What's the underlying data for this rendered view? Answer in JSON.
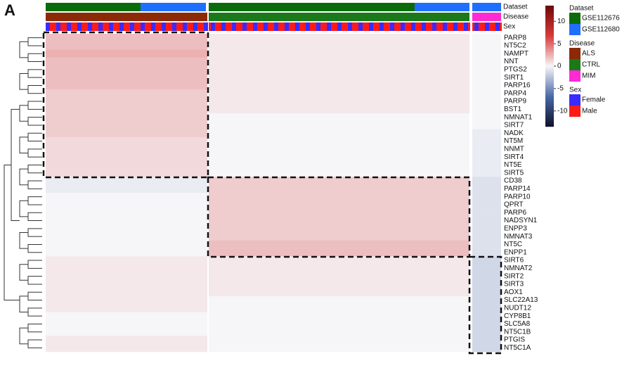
{
  "chart_data": {
    "type": "heatmap",
    "panel_label": "A",
    "annotation_labels": [
      "Dataset",
      "Disease",
      "Sex"
    ],
    "groups": [
      "ALS",
      "CTRL",
      "MIM"
    ],
    "rows": [
      "PARP8",
      "NT5C2",
      "NAMPT",
      "NNT",
      "PTGS2",
      "SIRT1",
      "PARP16",
      "PARP4",
      "PARP9",
      "BST1",
      "NMNAT1",
      "SIRT7",
      "NADK",
      "NT5M",
      "NNMT",
      "SIRT4",
      "NT5E",
      "SIRT5",
      "CD38",
      "PARP14",
      "PARP10",
      "QPRT",
      "PARP6",
      "NADSYN1",
      "ENPP3",
      "NMNAT3",
      "NT5C",
      "ENPP1",
      "SIRT6",
      "NMNAT2",
      "SIRT2",
      "SIRT3",
      "AOX1",
      "SLC22A13",
      "NUDT12",
      "CYP8B1",
      "SLC5A8",
      "NT5C1B",
      "PTGIS",
      "NT5C1A"
    ],
    "values": [
      [
        2,
        0.5,
        0
      ],
      [
        2,
        0.5,
        0
      ],
      [
        2.5,
        0.5,
        0
      ],
      [
        2,
        0.5,
        0
      ],
      [
        2,
        0.5,
        0
      ],
      [
        2,
        0.5,
        0
      ],
      [
        2,
        0.5,
        0
      ],
      [
        1.5,
        0.5,
        0
      ],
      [
        1.5,
        0.5,
        0
      ],
      [
        1.5,
        0.5,
        0
      ],
      [
        1.5,
        0,
        0
      ],
      [
        1.5,
        0,
        0
      ],
      [
        1.5,
        0,
        -0.5
      ],
      [
        1,
        0,
        -0.5
      ],
      [
        1,
        0,
        -0.5
      ],
      [
        1,
        0,
        -0.5
      ],
      [
        1,
        0,
        -0.5
      ],
      [
        1,
        0,
        -0.5
      ],
      [
        -0.5,
        1.5,
        -1
      ],
      [
        -0.5,
        1.5,
        -1
      ],
      [
        0,
        1.5,
        -1
      ],
      [
        0,
        1.5,
        -1
      ],
      [
        0,
        1.5,
        -1
      ],
      [
        0,
        1.5,
        -1
      ],
      [
        0,
        1.5,
        -1
      ],
      [
        0,
        1.5,
        -1
      ],
      [
        0,
        2,
        -1
      ],
      [
        0,
        2,
        -1
      ],
      [
        0.5,
        0.5,
        -1.5
      ],
      [
        0.5,
        0.5,
        -1.5
      ],
      [
        0.5,
        0.5,
        -1.5
      ],
      [
        0.5,
        0.5,
        -1.5
      ],
      [
        0.5,
        0.5,
        -1.5
      ],
      [
        0.5,
        0,
        -1.5
      ],
      [
        0.5,
        0,
        -1.5
      ],
      [
        0,
        0,
        -1.5
      ],
      [
        0,
        0,
        -1.5
      ],
      [
        0,
        0,
        -1.5
      ],
      [
        0.5,
        0,
        -1.5
      ],
      [
        0.5,
        0,
        -1.5
      ]
    ],
    "clim": [
      -13.5,
      13.5
    ],
    "cticks": [
      10,
      5,
      0,
      -5,
      -10
    ],
    "colormap": [
      "#10102a",
      "#4a6aa8",
      "#f6f6f8",
      "#d83a3a",
      "#6e0808"
    ],
    "legend": [
      {
        "title": "Dataset",
        "items": [
          {
            "name": "GSE112676",
            "color": "#0b6b0b"
          },
          {
            "name": "GSE112680",
            "color": "#1f6fff"
          }
        ]
      },
      {
        "title": "Disease",
        "items": [
          {
            "name": "ALS",
            "color": "#8b2a05"
          },
          {
            "name": "CTRL",
            "color": "#1a7a1a"
          },
          {
            "name": "MIM",
            "color": "#ff2ad4"
          }
        ]
      },
      {
        "title": "Sex",
        "items": [
          {
            "name": "Female",
            "color": "#3a2aff"
          },
          {
            "name": "Male",
            "color": "#ff1a1a"
          }
        ]
      }
    ]
  }
}
